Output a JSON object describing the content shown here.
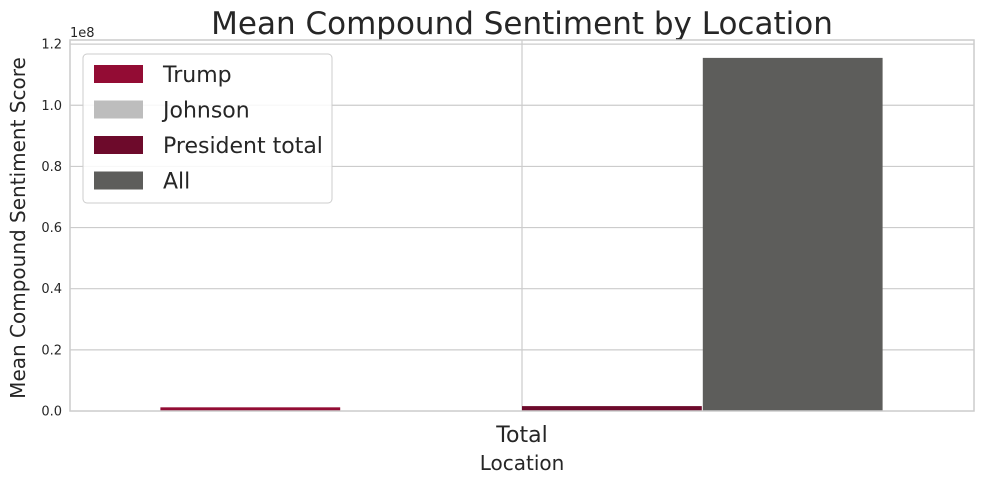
{
  "chart_data": {
    "type": "bar",
    "title": "Mean Compound Sentiment by Location",
    "xlabel": "Location",
    "ylabel": "Mean Compound Sentiment Score",
    "categories": [
      "Total"
    ],
    "y_offset_text": "1e8",
    "y_scale": 100000000,
    "ylim": [
      0,
      1.2
    ],
    "yticks": [
      0.0,
      0.2,
      0.4,
      0.6,
      0.8,
      1.0,
      1.2
    ],
    "ytick_labels": [
      "0.0",
      "0.2",
      "0.4",
      "0.6",
      "0.8",
      "1.0",
      "1.2"
    ],
    "grid": true,
    "legend_position": "top-left",
    "series": [
      {
        "name": "Trump",
        "values": [
          0.012
        ],
        "color": "#930C34"
      },
      {
        "name": "Johnson",
        "values": [
          0.0
        ],
        "color": "#BDBDBD"
      },
      {
        "name": "President total",
        "values": [
          0.016
        ],
        "color": "#6D0A2B"
      },
      {
        "name": "All",
        "values": [
          1.155
        ],
        "color": "#5D5D5B"
      }
    ]
  }
}
